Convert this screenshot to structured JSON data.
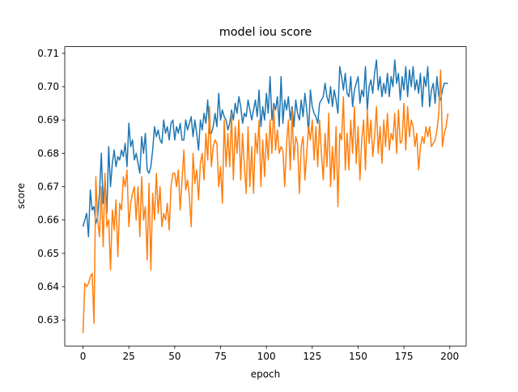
{
  "chart_data": {
    "type": "line",
    "title": "model iou score",
    "x_label": "epoch",
    "y_label": "score",
    "x": [
      0,
      1,
      2,
      3,
      4,
      5,
      6,
      7,
      8,
      9,
      10,
      11,
      12,
      13,
      14,
      15,
      16,
      17,
      18,
      19,
      20,
      21,
      22,
      23,
      24,
      25,
      26,
      27,
      28,
      29,
      30,
      31,
      32,
      33,
      34,
      35,
      36,
      37,
      38,
      39,
      40,
      41,
      42,
      43,
      44,
      45,
      46,
      47,
      48,
      49,
      50,
      51,
      52,
      53,
      54,
      55,
      56,
      57,
      58,
      59,
      60,
      61,
      62,
      63,
      64,
      65,
      66,
      67,
      68,
      69,
      70,
      71,
      72,
      73,
      74,
      75,
      76,
      77,
      78,
      79,
      80,
      81,
      82,
      83,
      84,
      85,
      86,
      87,
      88,
      89,
      90,
      91,
      92,
      93,
      94,
      95,
      96,
      97,
      98,
      99,
      100,
      101,
      102,
      103,
      104,
      105,
      106,
      107,
      108,
      109,
      110,
      111,
      112,
      113,
      114,
      115,
      116,
      117,
      118,
      119,
      120,
      121,
      122,
      123,
      124,
      125,
      126,
      127,
      128,
      129,
      130,
      131,
      132,
      133,
      134,
      135,
      136,
      137,
      138,
      139,
      140,
      141,
      142,
      143,
      144,
      145,
      146,
      147,
      148,
      149,
      150,
      151,
      152,
      153,
      154,
      155,
      156,
      157,
      158,
      159,
      160,
      161,
      162,
      163,
      164,
      165,
      166,
      167,
      168,
      169,
      170,
      171,
      172,
      173,
      174,
      175,
      176,
      177,
      178,
      179,
      180,
      181,
      182,
      183,
      184,
      185,
      186,
      187,
      188,
      189,
      190,
      191,
      192,
      193,
      194,
      195,
      196,
      197,
      198,
      199
    ],
    "series": [
      {
        "color": "#1f77b4",
        "values": [
          0.658,
          0.66,
          0.662,
          0.655,
          0.669,
          0.663,
          0.664,
          0.659,
          0.661,
          0.668,
          0.68,
          0.665,
          0.672,
          0.662,
          0.682,
          0.67,
          0.677,
          0.681,
          0.676,
          0.679,
          0.678,
          0.681,
          0.679,
          0.683,
          0.676,
          0.689,
          0.682,
          0.684,
          0.678,
          0.68,
          0.677,
          0.674,
          0.685,
          0.68,
          0.686,
          0.675,
          0.674,
          0.676,
          0.681,
          0.688,
          0.685,
          0.687,
          0.684,
          0.683,
          0.69,
          0.686,
          0.688,
          0.684,
          0.689,
          0.69,
          0.684,
          0.688,
          0.686,
          0.689,
          0.684,
          0.684,
          0.69,
          0.687,
          0.689,
          0.691,
          0.685,
          0.69,
          0.686,
          0.681,
          0.69,
          0.687,
          0.692,
          0.689,
          0.696,
          0.686,
          0.686,
          0.688,
          0.692,
          0.688,
          0.698,
          0.69,
          0.693,
          0.691,
          0.69,
          0.687,
          0.689,
          0.693,
          0.69,
          0.695,
          0.692,
          0.697,
          0.694,
          0.689,
          0.692,
          0.691,
          0.696,
          0.693,
          0.69,
          0.693,
          0.696,
          0.691,
          0.699,
          0.688,
          0.694,
          0.69,
          0.698,
          0.692,
          0.703,
          0.69,
          0.695,
          0.693,
          0.697,
          0.688,
          0.703,
          0.689,
          0.696,
          0.693,
          0.697,
          0.69,
          0.694,
          0.688,
          0.696,
          0.692,
          0.69,
          0.696,
          0.691,
          0.698,
          0.693,
          0.686,
          0.699,
          0.694,
          0.692,
          0.691,
          0.689,
          0.695,
          0.696,
          0.697,
          0.701,
          0.697,
          0.695,
          0.7,
          0.694,
          0.699,
          0.696,
          0.692,
          0.706,
          0.703,
          0.699,
          0.704,
          0.698,
          0.697,
          0.703,
          0.694,
          0.699,
          0.701,
          0.703,
          0.695,
          0.699,
          0.697,
          0.706,
          0.693,
          0.7,
          0.702,
          0.698,
          0.704,
          0.708,
          0.699,
          0.703,
          0.697,
          0.701,
          0.698,
          0.704,
          0.697,
          0.703,
          0.7,
          0.708,
          0.701,
          0.704,
          0.696,
          0.703,
          0.699,
          0.706,
          0.697,
          0.705,
          0.7,
          0.706,
          0.699,
          0.702,
          0.698,
          0.704,
          0.694,
          0.703,
          0.7,
          0.706,
          0.694,
          0.699,
          0.701,
          0.695,
          0.703,
          0.697,
          0.696,
          0.699,
          0.701,
          0.701,
          0.701
        ]
      },
      {
        "color": "#ff7f0e",
        "values": [
          0.626,
          0.641,
          0.64,
          0.641,
          0.643,
          0.644,
          0.629,
          0.673,
          0.66,
          0.655,
          0.67,
          0.652,
          0.674,
          0.658,
          0.66,
          0.645,
          0.663,
          0.657,
          0.666,
          0.649,
          0.665,
          0.663,
          0.673,
          0.67,
          0.675,
          0.658,
          0.665,
          0.668,
          0.67,
          0.66,
          0.67,
          0.655,
          0.673,
          0.66,
          0.664,
          0.648,
          0.671,
          0.645,
          0.668,
          0.66,
          0.674,
          0.662,
          0.67,
          0.658,
          0.662,
          0.66,
          0.665,
          0.657,
          0.67,
          0.674,
          0.674,
          0.67,
          0.675,
          0.663,
          0.672,
          0.681,
          0.669,
          0.672,
          0.667,
          0.658,
          0.68,
          0.671,
          0.675,
          0.666,
          0.677,
          0.68,
          0.672,
          0.686,
          0.678,
          0.694,
          0.676,
          0.682,
          0.684,
          0.683,
          0.67,
          0.676,
          0.665,
          0.69,
          0.676,
          0.686,
          0.676,
          0.692,
          0.672,
          0.688,
          0.68,
          0.69,
          0.672,
          0.686,
          0.676,
          0.668,
          0.688,
          0.67,
          0.682,
          0.668,
          0.686,
          0.68,
          0.69,
          0.67,
          0.684,
          0.673,
          0.686,
          0.678,
          0.69,
          0.68,
          0.694,
          0.681,
          0.687,
          0.68,
          0.682,
          0.681,
          0.67,
          0.683,
          0.69,
          0.675,
          0.693,
          0.678,
          0.685,
          0.683,
          0.668,
          0.682,
          0.685,
          0.672,
          0.68,
          0.688,
          0.684,
          0.69,
          0.678,
          0.688,
          0.676,
          0.69,
          0.68,
          0.672,
          0.686,
          0.676,
          0.692,
          0.67,
          0.682,
          0.672,
          0.688,
          0.664,
          0.686,
          0.684,
          0.697,
          0.675,
          0.686,
          0.675,
          0.69,
          0.68,
          0.694,
          0.677,
          0.688,
          0.672,
          0.684,
          0.69,
          0.675,
          0.693,
          0.683,
          0.69,
          0.679,
          0.685,
          0.694,
          0.68,
          0.688,
          0.677,
          0.69,
          0.682,
          0.692,
          0.681,
          0.686,
          0.684,
          0.692,
          0.68,
          0.693,
          0.683,
          0.684,
          0.695,
          0.681,
          0.694,
          0.685,
          0.69,
          0.688,
          0.682,
          0.686,
          0.675,
          0.682,
          0.685,
          0.683,
          0.688,
          0.685,
          0.688,
          0.682,
          0.683,
          0.684,
          0.687,
          0.692,
          0.705,
          0.682,
          0.686,
          0.688,
          0.692
        ]
      }
    ],
    "xlim": [
      -9.95,
      208.95
    ],
    "xticks": [
      0,
      25,
      50,
      75,
      100,
      125,
      150,
      175,
      200
    ],
    "ylim": [
      0.6222,
      0.712
    ],
    "yticks": [
      0.63,
      0.64,
      0.65,
      0.66,
      0.67,
      0.68,
      0.69,
      {
        "value": 0.7,
        "label": "0.70"
      },
      0.71
    ]
  }
}
